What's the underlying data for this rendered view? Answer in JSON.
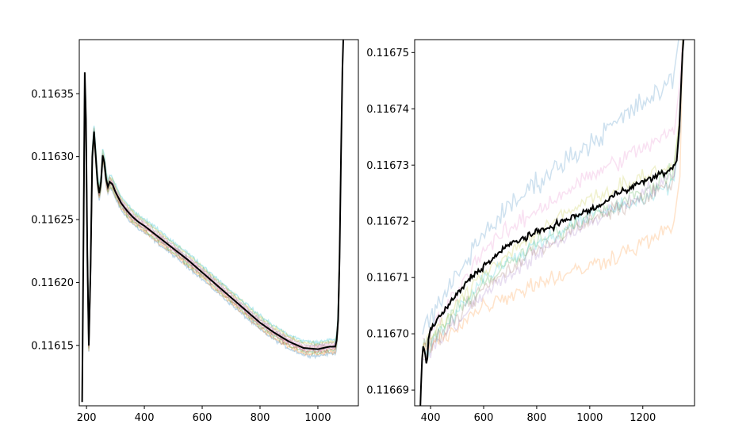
{
  "chart_data": [
    {
      "type": "line",
      "title": "",
      "xlabel": "",
      "ylabel": "",
      "xlim": [
        175,
        1140
      ],
      "ylim": [
        0.116102,
        0.116393
      ],
      "xticks": [
        200,
        400,
        600,
        800,
        1000
      ],
      "xtick_labels": [
        "200",
        "400",
        "600",
        "800",
        "1000"
      ],
      "yticks": [
        0.11615,
        0.1162,
        0.11625,
        0.1163,
        0.11635
      ],
      "ytick_labels": [
        "0.11615",
        "0.11620",
        "0.11625",
        "0.11630",
        "0.11635"
      ],
      "grid": false,
      "legend": "none",
      "mean_series": {
        "color": "#000000",
        "x": [
          185,
          190,
          194,
          198,
          203,
          208,
          214,
          220,
          226,
          232,
          238,
          244,
          250,
          256,
          262,
          268,
          274,
          280,
          290,
          300,
          320,
          340,
          360,
          380,
          400,
          450,
          500,
          550,
          600,
          650,
          700,
          750,
          800,
          850,
          900,
          950,
          1000,
          1020,
          1040,
          1060,
          1065,
          1070,
          1075,
          1080,
          1085,
          1090
        ],
        "y": [
          0.116105,
          0.11625,
          0.116367,
          0.11633,
          0.11622,
          0.11615,
          0.11621,
          0.1163,
          0.11632,
          0.1163,
          0.11628,
          0.116271,
          0.11628,
          0.116301,
          0.116295,
          0.116282,
          0.116276,
          0.11628,
          0.116278,
          0.116272,
          0.116263,
          0.116257,
          0.116252,
          0.116248,
          0.116245,
          0.116236,
          0.116227,
          0.116218,
          0.116208,
          0.116198,
          0.116188,
          0.116178,
          0.116168,
          0.11616,
          0.116153,
          0.116148,
          0.116147,
          0.116148,
          0.116149,
          0.116149,
          0.116154,
          0.11617,
          0.11622,
          0.1163,
          0.11637,
          0.11641
        ]
      },
      "noisy_series_colors": [
        "#1f77b4",
        "#ff7f0e",
        "#2ca02c",
        "#d62728",
        "#9467bd",
        "#8c564b",
        "#e377c2",
        "#7f7f7f",
        "#bcbd22",
        "#17becf"
      ]
    },
    {
      "type": "line",
      "title": "",
      "xlabel": "",
      "ylabel": "",
      "xlim": [
        340,
        1395
      ],
      "ylim": [
        0.1166872,
        0.1167523
      ],
      "xticks": [
        400,
        600,
        800,
        1000,
        1200
      ],
      "xtick_labels": [
        "400",
        "600",
        "800",
        "1000",
        "1200"
      ],
      "yticks": [
        0.11669,
        0.1167,
        0.11671,
        0.11672,
        0.11673,
        0.11674,
        0.11675
      ],
      "ytick_labels": [
        "0.11669",
        "0.11670",
        "0.11671",
        "0.11672",
        "0.11673",
        "0.11674",
        "0.11675"
      ],
      "grid": false,
      "legend": "none",
      "mean_series": {
        "color": "#000000",
        "x": [
          360,
          365,
          370,
          378,
          386,
          392,
          400,
          420,
          450,
          500,
          550,
          600,
          650,
          700,
          750,
          800,
          850,
          900,
          950,
          1000,
          1050,
          1100,
          1150,
          1200,
          1250,
          1300,
          1320,
          1330,
          1338,
          1345,
          1350,
          1355
        ],
        "y": [
          0.116685,
          0.116692,
          0.116698,
          0.116697,
          0.116694,
          0.116699,
          0.116701,
          0.116702,
          0.116704,
          0.116707,
          0.11671,
          0.116712,
          0.116714,
          0.116716,
          0.116717,
          0.116718,
          0.116719,
          0.11672,
          0.116721,
          0.116722,
          0.116723,
          0.116725,
          0.116726,
          0.116727,
          0.116728,
          0.116729,
          0.11673,
          0.116731,
          0.116737,
          0.116745,
          0.11675,
          0.116753
        ]
      },
      "noisy_series": [
        {
          "color": "#1f77b4",
          "y_at": [
            [
              380,
              0.116701
            ],
            [
              600,
              0.116718
            ],
            [
              800,
              0.116727
            ],
            [
              1000,
              0.116734
            ],
            [
              1200,
              0.116741
            ],
            [
              1320,
              0.116745
            ]
          ],
          "noise": 1.8e-06
        },
        {
          "color": "#e377c2",
          "y_at": [
            [
              380,
              0.116699
            ],
            [
              600,
              0.116715
            ],
            [
              800,
              0.116722
            ],
            [
              1000,
              0.116728
            ],
            [
              1200,
              0.116733
            ],
            [
              1320,
              0.116736
            ]
          ],
          "noise": 1.4e-06
        },
        {
          "color": "#ff7f0e",
          "y_at": [
            [
              380,
              0.116697
            ],
            [
              600,
              0.116705
            ],
            [
              800,
              0.116709
            ],
            [
              1000,
              0.116712
            ],
            [
              1200,
              0.116716
            ],
            [
              1320,
              0.116719
            ]
          ],
          "noise": 1.4e-06
        },
        {
          "color": "#2ca02c",
          "y_at": [
            [
              380,
              0.116698
            ],
            [
              600,
              0.116709
            ],
            [
              800,
              0.116716
            ],
            [
              1000,
              0.116721
            ],
            [
              1200,
              0.116725
            ],
            [
              1320,
              0.116729
            ]
          ],
          "noise": 1.3e-06
        },
        {
          "color": "#9467bd",
          "y_at": [
            [
              380,
              0.116696
            ],
            [
              600,
              0.116707
            ],
            [
              800,
              0.116714
            ],
            [
              1000,
              0.11672
            ],
            [
              1200,
              0.116725
            ],
            [
              1320,
              0.116728
            ]
          ],
          "noise": 1.3e-06
        },
        {
          "color": "#17becf",
          "y_at": [
            [
              380,
              0.116697
            ],
            [
              600,
              0.11671
            ],
            [
              800,
              0.116716
            ],
            [
              1000,
              0.116721
            ],
            [
              1200,
              0.116724
            ],
            [
              1320,
              0.116727
            ]
          ],
          "noise": 1.3e-06
        },
        {
          "color": "#bcbd22",
          "y_at": [
            [
              380,
              0.116698
            ],
            [
              600,
              0.116711
            ],
            [
              800,
              0.116718
            ],
            [
              1000,
              0.116724
            ],
            [
              1200,
              0.116728
            ],
            [
              1320,
              0.11673
            ]
          ],
          "noise": 1.2e-06
        },
        {
          "color": "#8c564b",
          "y_at": [
            [
              380,
              0.116697
            ],
            [
              600,
              0.116708
            ],
            [
              800,
              0.116715
            ],
            [
              1000,
              0.11672
            ],
            [
              1200,
              0.116724
            ],
            [
              1320,
              0.116727
            ]
          ],
          "noise": 1.2e-06
        }
      ]
    }
  ]
}
